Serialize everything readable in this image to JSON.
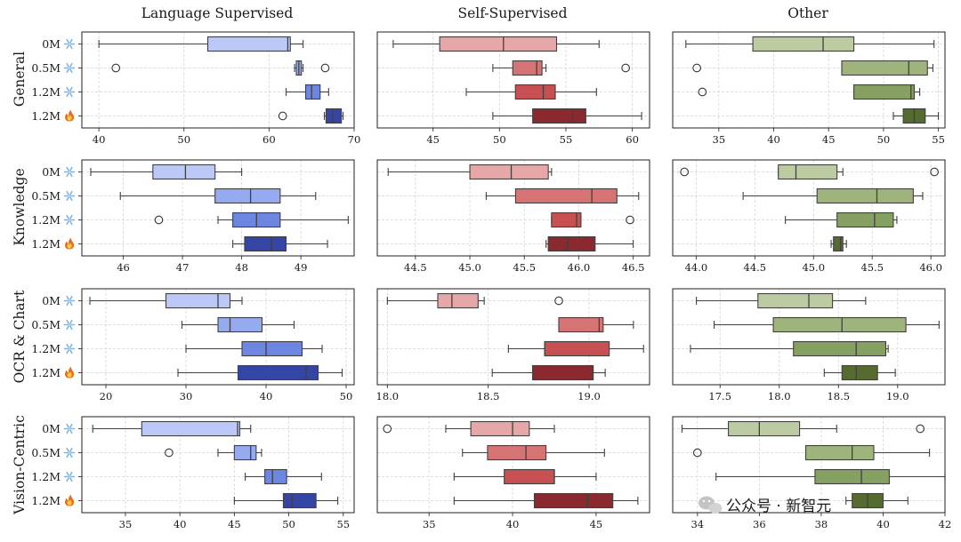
{
  "figure": {
    "column_titles": [
      "Language Supervised",
      "Self-Supervised",
      "Other"
    ],
    "row_labels": [
      "General",
      "Knowledge",
      "OCR & Chart",
      "Vision-Centric"
    ],
    "categories": [
      "0M",
      "0.5M",
      "1.2M",
      "1.2M"
    ],
    "category_icons": [
      "snowflake-icon",
      "snowflake-icon",
      "snowflake-icon",
      "flame-icon"
    ],
    "watermark": "公众号 · 新智元",
    "palettes": {
      "Language Supervised": [
        "#bcc8f6",
        "#96aaef",
        "#6d86e2",
        "#3545a3"
      ],
      "Self-Supervised": [
        "#e5a7a8",
        "#d67475",
        "#c65052",
        "#8a2a30"
      ],
      "Other": [
        "#bccba2",
        "#9fb47d",
        "#85a060",
        "#556b30"
      ]
    }
  },
  "chart_data": [
    {
      "type": "boxplot",
      "row": "General",
      "column": "Language Supervised",
      "xlim": [
        38,
        70
      ],
      "ticks": [
        40,
        50,
        60,
        70
      ],
      "categories": [
        "0M",
        "0.5M",
        "1.2M",
        "1.2M"
      ],
      "boxes": [
        {
          "whislo": 40.0,
          "q1": 52.8,
          "med": 62.2,
          "q3": 62.5,
          "whishi": 64.0,
          "fliers": []
        },
        {
          "whislo": 63.0,
          "q1": 63.2,
          "med": 63.5,
          "q3": 63.8,
          "whishi": 64.0,
          "fliers": [
            42.0,
            66.6
          ]
        },
        {
          "whislo": 62.0,
          "q1": 64.3,
          "med": 65.0,
          "q3": 66.0,
          "whishi": 67.0,
          "fliers": []
        },
        {
          "whislo": 66.5,
          "q1": 66.7,
          "med": 67.5,
          "q3": 68.5,
          "whishi": 68.7,
          "fliers": [
            61.6
          ]
        }
      ]
    },
    {
      "type": "boxplot",
      "row": "General",
      "column": "Self-Supervised",
      "xlim": [
        40.8,
        61.3
      ],
      "ticks": [
        45,
        50,
        55,
        60
      ],
      "categories": [
        "0M",
        "0.5M",
        "1.2M",
        "1.2M"
      ],
      "boxes": [
        {
          "whislo": 42.0,
          "q1": 45.5,
          "med": 50.3,
          "q3": 54.3,
          "whishi": 57.5,
          "fliers": []
        },
        {
          "whislo": 49.5,
          "q1": 51.0,
          "med": 52.8,
          "q3": 53.2,
          "whishi": 53.5,
          "fliers": [
            59.5
          ]
        },
        {
          "whislo": 47.5,
          "q1": 51.2,
          "med": 53.3,
          "q3": 54.2,
          "whishi": 57.3,
          "fliers": []
        },
        {
          "whislo": 49.5,
          "q1": 52.5,
          "med": 55.5,
          "q3": 56.5,
          "whishi": 60.7,
          "fliers": []
        }
      ]
    },
    {
      "type": "boxplot",
      "row": "General",
      "column": "Other",
      "xlim": [
        30.8,
        55.6
      ],
      "ticks": [
        35,
        40,
        45,
        50,
        55
      ],
      "categories": [
        "0M",
        "0.5M",
        "1.2M",
        "1.2M"
      ],
      "boxes": [
        {
          "whislo": 32.0,
          "q1": 38.1,
          "med": 44.5,
          "q3": 47.3,
          "whishi": 54.6,
          "fliers": []
        },
        {
          "whislo": 46.2,
          "q1": 46.2,
          "med": 52.3,
          "q3": 54.0,
          "whishi": 54.5,
          "fliers": [
            33.0
          ]
        },
        {
          "whislo": 47.3,
          "q1": 47.3,
          "med": 52.5,
          "q3": 52.8,
          "whishi": 53.3,
          "fliers": [
            33.5
          ]
        },
        {
          "whislo": 50.9,
          "q1": 51.8,
          "med": 52.8,
          "q3": 53.8,
          "whishi": 55.0,
          "fliers": []
        }
      ]
    },
    {
      "type": "boxplot",
      "row": "Knowledge",
      "column": "Language Supervised",
      "xlim": [
        45.3,
        49.9
      ],
      "ticks": [
        46,
        47,
        48,
        49
      ],
      "categories": [
        "0M",
        "0.5M",
        "1.2M",
        "1.2M"
      ],
      "boxes": [
        {
          "whislo": 45.45,
          "q1": 46.5,
          "med": 47.05,
          "q3": 47.55,
          "whishi": 48.0,
          "fliers": []
        },
        {
          "whislo": 45.95,
          "q1": 47.55,
          "med": 48.15,
          "q3": 48.65,
          "whishi": 49.25,
          "fliers": []
        },
        {
          "whislo": 47.6,
          "q1": 47.85,
          "med": 48.25,
          "q3": 48.65,
          "whishi": 49.8,
          "fliers": [
            46.6
          ]
        },
        {
          "whislo": 47.85,
          "q1": 48.05,
          "med": 48.5,
          "q3": 48.75,
          "whishi": 49.45,
          "fliers": []
        }
      ]
    },
    {
      "type": "boxplot",
      "row": "Knowledge",
      "column": "Self-Supervised",
      "xlim": [
        44.15,
        46.65
      ],
      "ticks": [
        44.5,
        45.0,
        45.5,
        46.0,
        46.5
      ],
      "categories": [
        "0M",
        "0.5M",
        "1.2M",
        "1.2M"
      ],
      "boxes": [
        {
          "whislo": 44.25,
          "q1": 45.0,
          "med": 45.38,
          "q3": 45.72,
          "whishi": 45.75,
          "fliers": []
        },
        {
          "whislo": 45.15,
          "q1": 45.42,
          "med": 46.12,
          "q3": 46.35,
          "whishi": 46.55,
          "fliers": []
        },
        {
          "whislo": 45.75,
          "q1": 45.75,
          "med": 45.98,
          "q3": 46.02,
          "whishi": 46.02,
          "fliers": [
            46.47
          ]
        },
        {
          "whislo": 45.7,
          "q1": 45.72,
          "med": 45.9,
          "q3": 46.15,
          "whishi": 46.5,
          "fliers": []
        }
      ]
    },
    {
      "type": "boxplot",
      "row": "Knowledge",
      "column": "Other",
      "xlim": [
        43.8,
        46.12
      ],
      "ticks": [
        44.0,
        44.5,
        45.0,
        45.5,
        46.0
      ],
      "categories": [
        "0M",
        "0.5M",
        "1.2M",
        "1.2M"
      ],
      "boxes": [
        {
          "whislo": 44.7,
          "q1": 44.7,
          "med": 44.85,
          "q3": 45.2,
          "whishi": 45.25,
          "fliers": [
            43.9,
            46.03
          ]
        },
        {
          "whislo": 44.4,
          "q1": 45.03,
          "med": 45.54,
          "q3": 45.85,
          "whishi": 45.93,
          "fliers": []
        },
        {
          "whislo": 44.76,
          "q1": 45.2,
          "med": 45.52,
          "q3": 45.68,
          "whishi": 45.71,
          "fliers": []
        },
        {
          "whislo": 45.15,
          "q1": 45.17,
          "med": 45.23,
          "q3": 45.25,
          "whishi": 45.28,
          "fliers": []
        }
      ]
    },
    {
      "type": "boxplot",
      "row": "OCR & Chart",
      "column": "Language Supervised",
      "xlim": [
        17,
        51
      ],
      "ticks": [
        20,
        30,
        40,
        50
      ],
      "categories": [
        "0M",
        "0.5M",
        "1.2M",
        "1.2M"
      ],
      "boxes": [
        {
          "whislo": 18.0,
          "q1": 27.5,
          "med": 34.0,
          "q3": 35.5,
          "whishi": 37.0,
          "fliers": []
        },
        {
          "whislo": 29.5,
          "q1": 34.0,
          "med": 35.5,
          "q3": 39.5,
          "whishi": 43.5,
          "fliers": []
        },
        {
          "whislo": 30.0,
          "q1": 37.0,
          "med": 40.0,
          "q3": 44.5,
          "whishi": 47.0,
          "fliers": []
        },
        {
          "whislo": 29.0,
          "q1": 36.5,
          "med": 45.0,
          "q3": 46.5,
          "whishi": 49.5,
          "fliers": []
        }
      ]
    },
    {
      "type": "boxplot",
      "row": "OCR & Chart",
      "column": "Self-Supervised",
      "xlim": [
        17.95,
        19.3
      ],
      "ticks": [
        18.0,
        18.5,
        19.0
      ],
      "categories": [
        "0M",
        "0.5M",
        "1.2M",
        "1.2M"
      ],
      "boxes": [
        {
          "whislo": 18.0,
          "q1": 18.25,
          "med": 18.32,
          "q3": 18.45,
          "whishi": 18.48,
          "fliers": [
            18.85
          ]
        },
        {
          "whislo": 18.85,
          "q1": 18.85,
          "med": 19.05,
          "q3": 19.07,
          "whishi": 19.22,
          "fliers": []
        },
        {
          "whislo": 18.6,
          "q1": 18.78,
          "med": 18.78,
          "q3": 19.1,
          "whishi": 19.27,
          "fliers": []
        },
        {
          "whislo": 18.52,
          "q1": 18.72,
          "med": 19.02,
          "q3": 19.02,
          "whishi": 19.08,
          "fliers": []
        }
      ]
    },
    {
      "type": "boxplot",
      "row": "OCR & Chart",
      "column": "Other",
      "xlim": [
        17.1,
        19.4
      ],
      "ticks": [
        17.5,
        18.0,
        18.5,
        19.0
      ],
      "categories": [
        "0M",
        "0.5M",
        "1.2M",
        "1.2M"
      ],
      "boxes": [
        {
          "whislo": 17.3,
          "q1": 17.82,
          "med": 18.25,
          "q3": 18.45,
          "whishi": 18.73,
          "fliers": []
        },
        {
          "whislo": 17.45,
          "q1": 17.95,
          "med": 18.53,
          "q3": 19.07,
          "whishi": 19.35,
          "fliers": []
        },
        {
          "whislo": 17.25,
          "q1": 18.12,
          "med": 18.65,
          "q3": 18.9,
          "whishi": 18.92,
          "fliers": []
        },
        {
          "whislo": 18.38,
          "q1": 18.53,
          "med": 18.65,
          "q3": 18.83,
          "whishi": 18.98,
          "fliers": []
        }
      ]
    },
    {
      "type": "boxplot",
      "row": "Vision-Centric",
      "column": "Language Supervised",
      "xlim": [
        31,
        56
      ],
      "ticks": [
        35,
        40,
        45,
        50,
        55
      ],
      "categories": [
        "0M",
        "0.5M",
        "1.2M",
        "1.2M"
      ],
      "boxes": [
        {
          "whislo": 32.0,
          "q1": 36.5,
          "med": 45.3,
          "q3": 45.5,
          "whishi": 46.5,
          "fliers": []
        },
        {
          "whislo": 43.5,
          "q1": 45.0,
          "med": 46.5,
          "q3": 47.0,
          "whishi": 47.5,
          "fliers": [
            39.0
          ]
        },
        {
          "whislo": 46.0,
          "q1": 47.8,
          "med": 48.5,
          "q3": 49.8,
          "whishi": 53.0,
          "fliers": []
        },
        {
          "whislo": 45.0,
          "q1": 49.5,
          "med": 50.3,
          "q3": 52.5,
          "whishi": 54.5,
          "fliers": []
        }
      ]
    },
    {
      "type": "boxplot",
      "row": "Vision-Centric",
      "column": "Self-Supervised",
      "xlim": [
        31.9,
        48.2
      ],
      "ticks": [
        35,
        40,
        45
      ],
      "categories": [
        "0M",
        "0.5M",
        "1.2M",
        "1.2M"
      ],
      "boxes": [
        {
          "whislo": 36.0,
          "q1": 37.5,
          "med": 40.0,
          "q3": 41.0,
          "whishi": 42.5,
          "fliers": [
            32.5
          ]
        },
        {
          "whislo": 37.0,
          "q1": 38.5,
          "med": 40.8,
          "q3": 42.0,
          "whishi": 45.5,
          "fliers": []
        },
        {
          "whislo": 36.5,
          "q1": 39.5,
          "med": 42.5,
          "q3": 42.5,
          "whishi": 45.0,
          "fliers": []
        },
        {
          "whislo": 36.5,
          "q1": 41.3,
          "med": 44.5,
          "q3": 46.0,
          "whishi": 47.5,
          "fliers": []
        }
      ]
    },
    {
      "type": "boxplot",
      "row": "Vision-Centric",
      "column": "Other",
      "xlim": [
        33.2,
        42.0
      ],
      "ticks": [
        34,
        36,
        38,
        40,
        42
      ],
      "categories": [
        "0M",
        "0.5M",
        "1.2M",
        "1.2M"
      ],
      "boxes": [
        {
          "whislo": 33.5,
          "q1": 35.0,
          "med": 36.0,
          "q3": 37.3,
          "whishi": 38.5,
          "fliers": [
            41.2
          ]
        },
        {
          "whislo": 37.5,
          "q1": 37.5,
          "med": 39.0,
          "q3": 39.7,
          "whishi": 41.5,
          "fliers": [
            34.0
          ]
        },
        {
          "whislo": 34.6,
          "q1": 37.8,
          "med": 39.3,
          "q3": 40.2,
          "whishi": 42.0,
          "fliers": []
        },
        {
          "whislo": 38.8,
          "q1": 39.0,
          "med": 39.5,
          "q3": 40.0,
          "whishi": 40.8,
          "fliers": []
        }
      ]
    }
  ]
}
